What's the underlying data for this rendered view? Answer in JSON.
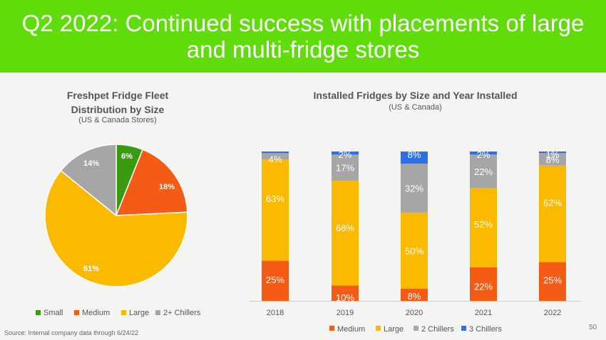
{
  "header": {
    "title": "Q2 2022: Continued success with placements of large and multi-fridge stores"
  },
  "footer": {
    "source": "Source:  Internal company data through 6/24/22",
    "page_number": "50"
  },
  "chart_data": [
    {
      "type": "pie",
      "title": "Freshpet Fridge Fleet Distribution by Size",
      "subtitle": "(US & Canada Stores)",
      "categories": [
        "Small",
        "Medium",
        "Large",
        "2+ Chillers"
      ],
      "values": [
        6,
        18,
        61,
        14
      ],
      "labels": [
        "6%",
        "18%",
        "61%",
        "14%"
      ],
      "colors": [
        "#3a9a12",
        "#f45b14",
        "#fbb900",
        "#a6a6a6"
      ],
      "legend": "bottom"
    },
    {
      "type": "bar",
      "stacked": true,
      "title": "Installed Fridges by Size and Year Installed",
      "subtitle": "(US & Canada)",
      "categories": [
        "2018",
        "2019",
        "2020",
        "2021",
        "2022"
      ],
      "series": [
        {
          "name": "Medium",
          "color": "#f45b14",
          "values": [
            25,
            10,
            8,
            22,
            25
          ],
          "labels": [
            "25%",
            "10%",
            "8%",
            "22%",
            "25%"
          ]
        },
        {
          "name": "Large",
          "color": "#fbb900",
          "values": [
            63,
            68,
            50,
            52,
            62
          ],
          "labels": [
            "63%",
            "68%",
            "50%",
            "52%",
            "62%"
          ]
        },
        {
          "name": "2 Chillers",
          "color": "#a6a6a6",
          "values": [
            4,
            17,
            32,
            22,
            8
          ],
          "labels": [
            "4%",
            "17%",
            "32%",
            "22%",
            "8%"
          ]
        },
        {
          "name": "3 Chillers",
          "color": "#2f6fe6",
          "values": [
            1,
            2,
            8,
            2,
            1
          ],
          "labels": [
            "",
            "2%",
            "8%",
            "2%",
            "1%"
          ]
        }
      ],
      "ylim": [
        0,
        100
      ],
      "legend": "bottom"
    }
  ]
}
